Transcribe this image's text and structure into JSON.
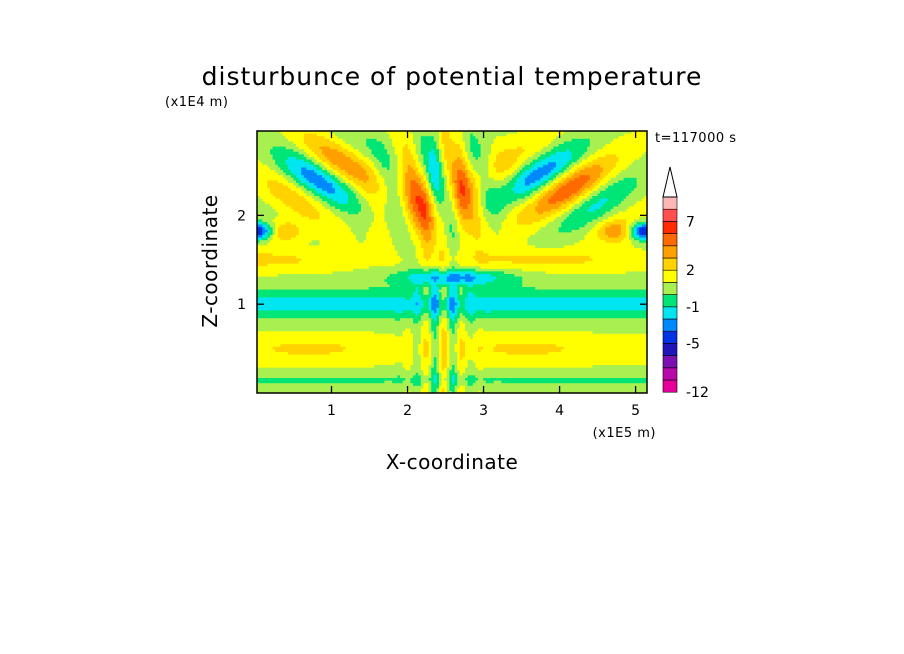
{
  "chart_data": {
    "type": "heatmap",
    "title": "disturbunce of potential temperature",
    "xlabel": "X-coordinate",
    "ylabel": "Z-coordinate",
    "x_unit": "(x1E5 m)",
    "y_unit": "(x1E4 m)",
    "time_label": "t=117000 s",
    "xlim": [
      0.02,
      5.15
    ],
    "ylim": [
      0.0,
      2.95
    ],
    "x_ticks": [
      1,
      2,
      3,
      4,
      5
    ],
    "y_ticks": [
      1,
      2
    ],
    "x_tick_labels": [
      "1",
      "2",
      "3",
      "4",
      "5"
    ],
    "y_tick_labels": [
      "1",
      "2"
    ],
    "colorbar": {
      "colors": [
        "#e60099",
        "#b80aa8",
        "#7a10b0",
        "#2015b8",
        "#0033e6",
        "#0088ff",
        "#00e6f0",
        "#00e676",
        "#a8f050",
        "#ffff00",
        "#ffd200",
        "#ffa000",
        "#ff6a00",
        "#ff2a00",
        "#ff4f4f",
        "#ffb6b6"
      ],
      "bins": [
        [
          -12,
          -11
        ],
        [
          -11,
          -9
        ],
        [
          -9,
          -7
        ],
        [
          -7,
          -5
        ],
        [
          -5,
          -3
        ],
        [
          -3,
          -2
        ],
        [
          -2,
          -1
        ],
        [
          -1,
          0
        ],
        [
          0,
          1
        ],
        [
          1,
          2
        ],
        [
          2,
          3
        ],
        [
          3,
          4
        ],
        [
          4,
          5
        ],
        [
          5,
          7
        ],
        [
          7,
          9
        ],
        [
          9,
          11
        ]
      ],
      "extend": "max",
      "tick_values": [
        -12,
        -5,
        -1,
        2,
        7
      ],
      "tick_labels": [
        "-12",
        "-5",
        "-1",
        "2",
        "7"
      ]
    }
  }
}
